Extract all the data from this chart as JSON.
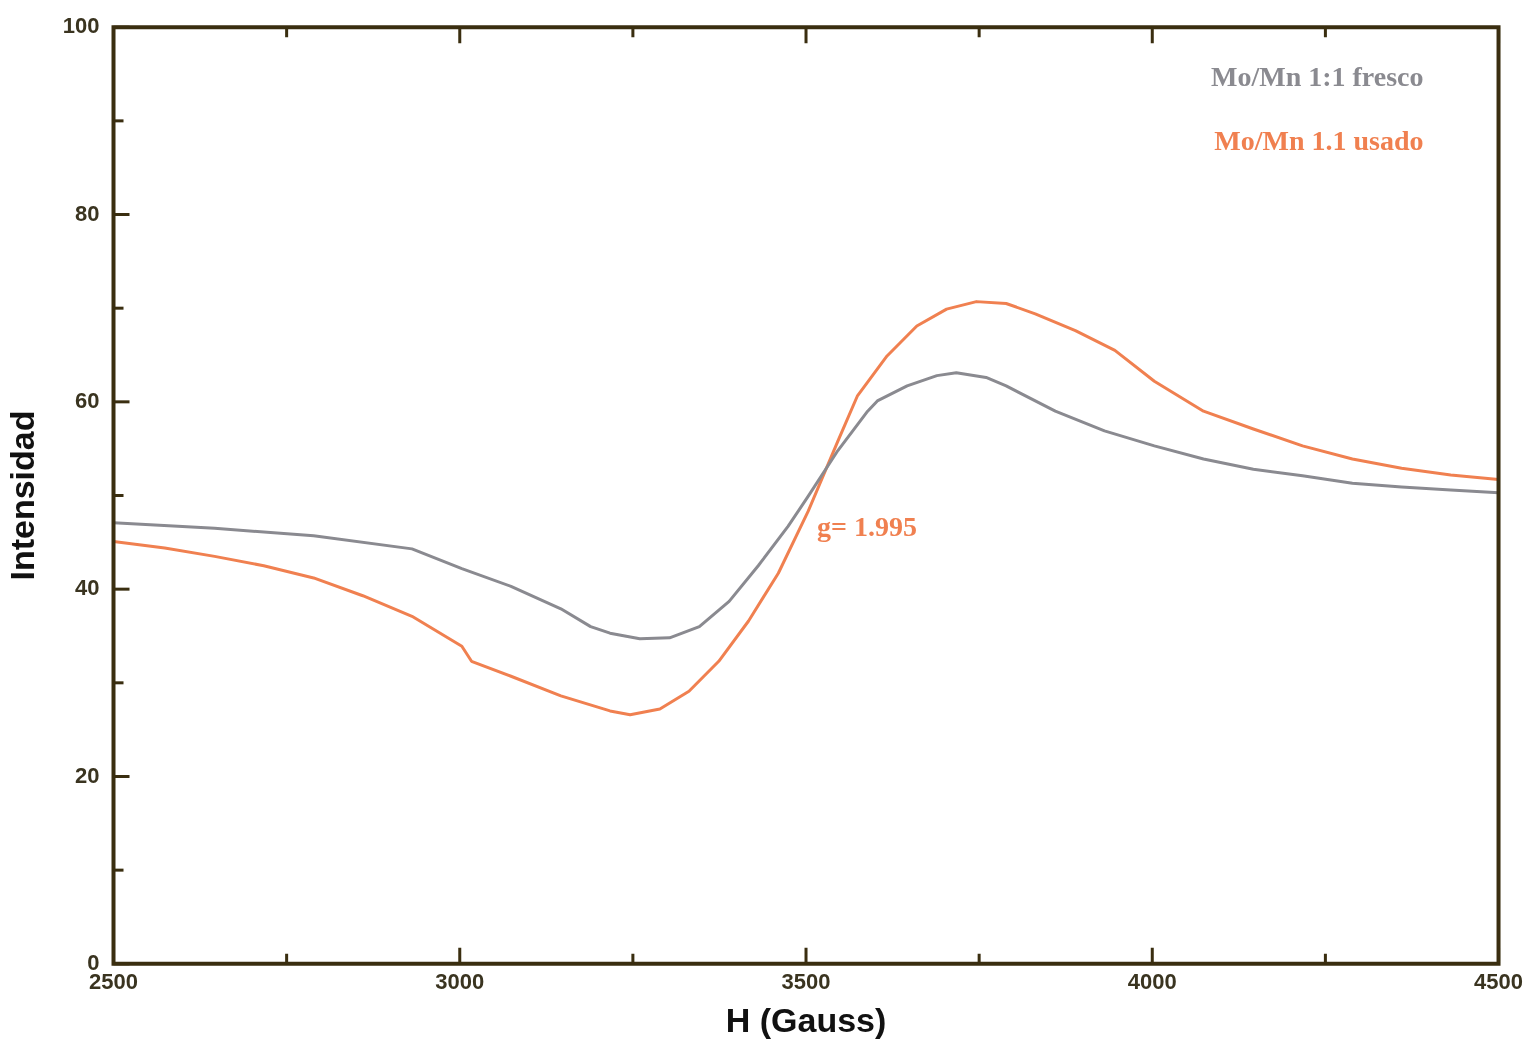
{
  "chart_data": {
    "type": "line",
    "xlabel": "H (Gauss)",
    "ylabel": "Intensidad",
    "xlim": [
      2500,
      4500
    ],
    "xticks": [
      2500,
      {
        "value": 2750,
        "label": null
      },
      3000,
      {
        "value": 3250,
        "label": null
      },
      3500,
      {
        "value": 3750,
        "label": null
      },
      4000,
      {
        "value": 4250,
        "label": null
      },
      4500
    ],
    "ylim": [
      0,
      100
    ],
    "yticks": [
      0,
      {
        "value": 10,
        "label": null
      },
      20,
      {
        "value": 30,
        "label": null
      },
      40,
      {
        "value": 50,
        "label": null
      },
      60,
      {
        "value": 70,
        "label": null
      },
      80,
      {
        "value": 90,
        "label": null
      },
      100
    ],
    "grid": false,
    "legend": "top right",
    "marker": "none",
    "line_style": "solid",
    "annotations": [
      "g= 1.995"
    ],
    "series": [
      {
        "name": "Mo/Mn 1:1 fresco",
        "color": "#8a8a90",
        "x": [
          2500,
          2646,
          2789,
          2931,
          3003,
          3074,
          3146,
          3189,
          3217,
          3260,
          3303,
          3346,
          3389,
          3431,
          3474,
          3503,
          3546,
          3589,
          3603,
          3646,
          3689,
          3717,
          3760,
          3789,
          3860,
          3931,
          4003,
          4074,
          4146,
          4217,
          4289,
          4360,
          4431,
          4500
        ],
        "values": [
          47.1,
          46.5,
          45.7,
          44.3,
          42.2,
          40.3,
          37.9,
          36.0,
          35.3,
          34.7,
          34.8,
          36.0,
          38.7,
          42.5,
          46.7,
          49.9,
          54.8,
          59.0,
          60.1,
          61.7,
          62.8,
          63.1,
          62.6,
          61.7,
          59.0,
          56.9,
          55.3,
          53.9,
          52.8,
          52.1,
          51.3,
          50.9,
          50.6,
          50.3
        ]
      },
      {
        "name": "Mo/Mn 1.1 usado",
        "color": "#f08050",
        "x": [
          2500,
          2574,
          2646,
          2717,
          2789,
          2860,
          2931,
          3003,
          3017,
          3074,
          3146,
          3217,
          3246,
          3289,
          3331,
          3374,
          3417,
          3460,
          3503,
          3546,
          3574,
          3617,
          3660,
          3703,
          3746,
          3789,
          3831,
          3889,
          3946,
          4003,
          4074,
          4146,
          4217,
          4289,
          4360,
          4431,
          4500
        ],
        "values": [
          45.1,
          44.4,
          43.5,
          42.5,
          41.2,
          39.3,
          37.1,
          33.9,
          32.3,
          30.7,
          28.6,
          27.0,
          26.6,
          27.2,
          29.1,
          32.3,
          36.6,
          41.7,
          48.3,
          55.8,
          60.6,
          64.9,
          68.1,
          69.9,
          70.7,
          70.5,
          69.4,
          67.6,
          65.5,
          62.2,
          59.0,
          57.1,
          55.3,
          53.9,
          52.9,
          52.2,
          51.7
        ]
      }
    ]
  }
}
